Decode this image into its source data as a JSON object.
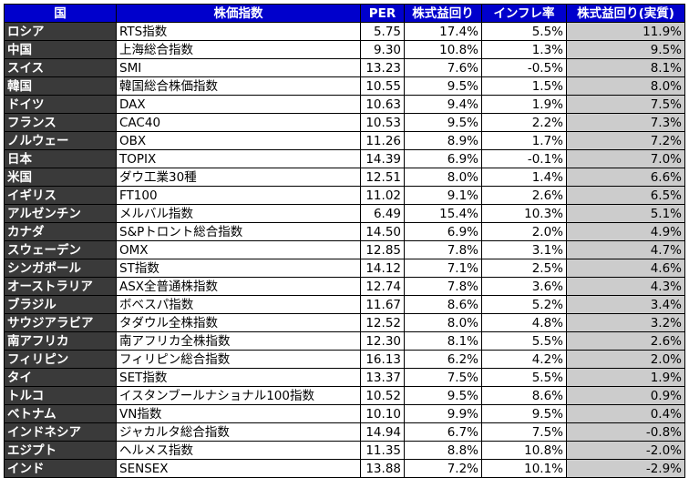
{
  "table": {
    "headers": [
      "国",
      "株価指数",
      "PER",
      "株式益回り",
      "インフレ率",
      "株式益回り(実質)"
    ],
    "rows": [
      {
        "country": "ロシア",
        "index": "RTS指数",
        "per": "5.75",
        "yield": "17.4%",
        "inflation": "5.5%",
        "real": "11.9%"
      },
      {
        "country": "中国",
        "index": "上海総合指数",
        "per": "9.30",
        "yield": "10.8%",
        "inflation": "1.3%",
        "real": "9.5%"
      },
      {
        "country": "スイス",
        "index": "SMI",
        "per": "13.23",
        "yield": "7.6%",
        "inflation": "-0.5%",
        "real": "8.1%"
      },
      {
        "country": "韓国",
        "index": "韓国総合株価指数",
        "per": "10.55",
        "yield": "9.5%",
        "inflation": "1.5%",
        "real": "8.0%"
      },
      {
        "country": "ドイツ",
        "index": "DAX",
        "per": "10.63",
        "yield": "9.4%",
        "inflation": "1.9%",
        "real": "7.5%"
      },
      {
        "country": "フランス",
        "index": "CAC40",
        "per": "10.53",
        "yield": "9.5%",
        "inflation": "2.2%",
        "real": "7.3%"
      },
      {
        "country": "ノルウェー",
        "index": "OBX",
        "per": "11.26",
        "yield": "8.9%",
        "inflation": "1.7%",
        "real": "7.2%"
      },
      {
        "country": "日本",
        "index": "TOPIX",
        "per": "14.39",
        "yield": "6.9%",
        "inflation": "-0.1%",
        "real": "7.0%"
      },
      {
        "country": "米国",
        "index": "ダウ工業30種",
        "per": "12.51",
        "yield": "8.0%",
        "inflation": "1.4%",
        "real": "6.6%"
      },
      {
        "country": "イギリス",
        "index": "FT100",
        "per": "11.02",
        "yield": "9.1%",
        "inflation": "2.6%",
        "real": "6.5%"
      },
      {
        "country": "アルゼンチン",
        "index": "メルバル指数",
        "per": "6.49",
        "yield": "15.4%",
        "inflation": "10.3%",
        "real": "5.1%"
      },
      {
        "country": "カナダ",
        "index": "S&Pトロント総合指数",
        "per": "14.50",
        "yield": "6.9%",
        "inflation": "2.0%",
        "real": "4.9%"
      },
      {
        "country": "スウェーデン",
        "index": "OMX",
        "per": "12.85",
        "yield": "7.8%",
        "inflation": "3.1%",
        "real": "4.7%"
      },
      {
        "country": "シンガポール",
        "index": "ST指数",
        "per": "14.12",
        "yield": "7.1%",
        "inflation": "2.5%",
        "real": "4.6%"
      },
      {
        "country": "オーストラリア",
        "index": "ASX全普通株指数",
        "per": "12.74",
        "yield": "7.8%",
        "inflation": "3.6%",
        "real": "4.3%"
      },
      {
        "country": "ブラジル",
        "index": "ボベスパ指数",
        "per": "11.67",
        "yield": "8.6%",
        "inflation": "5.2%",
        "real": "3.4%"
      },
      {
        "country": "サウジアラビア",
        "index": "タダウル全株指数",
        "per": "12.52",
        "yield": "8.0%",
        "inflation": "4.8%",
        "real": "3.2%"
      },
      {
        "country": "南アフリカ",
        "index": "南アフリカ全株指数",
        "per": "12.30",
        "yield": "8.1%",
        "inflation": "5.5%",
        "real": "2.6%"
      },
      {
        "country": "フィリピン",
        "index": "フィリピン総合指数",
        "per": "16.13",
        "yield": "6.2%",
        "inflation": "4.2%",
        "real": "2.0%"
      },
      {
        "country": "タイ",
        "index": "SET指数",
        "per": "13.37",
        "yield": "7.5%",
        "inflation": "5.5%",
        "real": "1.9%"
      },
      {
        "country": "トルコ",
        "index": "イスタンブールナショナル100指数",
        "per": "10.52",
        "yield": "9.5%",
        "inflation": "8.6%",
        "real": "0.9%"
      },
      {
        "country": "ベトナム",
        "index": "VN指数",
        "per": "10.10",
        "yield": "9.9%",
        "inflation": "9.5%",
        "real": "0.4%"
      },
      {
        "country": "インドネシア",
        "index": "ジャカルタ総合指数",
        "per": "14.94",
        "yield": "6.7%",
        "inflation": "7.5%",
        "real": "-0.8%"
      },
      {
        "country": "エジプト",
        "index": "ヘルメス指数",
        "per": "11.35",
        "yield": "8.8%",
        "inflation": "10.8%",
        "real": "-2.0%"
      },
      {
        "country": "インド",
        "index": "SENSEX",
        "per": "13.88",
        "yield": "7.2%",
        "inflation": "10.1%",
        "real": "-2.9%"
      }
    ]
  },
  "colors": {
    "header_bg": "#0000cc",
    "header_text": "#ffffff",
    "country_bg": "#3a3a3a",
    "country_text": "#ffffff",
    "real_bg": "#cccccc",
    "grid": "#000000"
  }
}
